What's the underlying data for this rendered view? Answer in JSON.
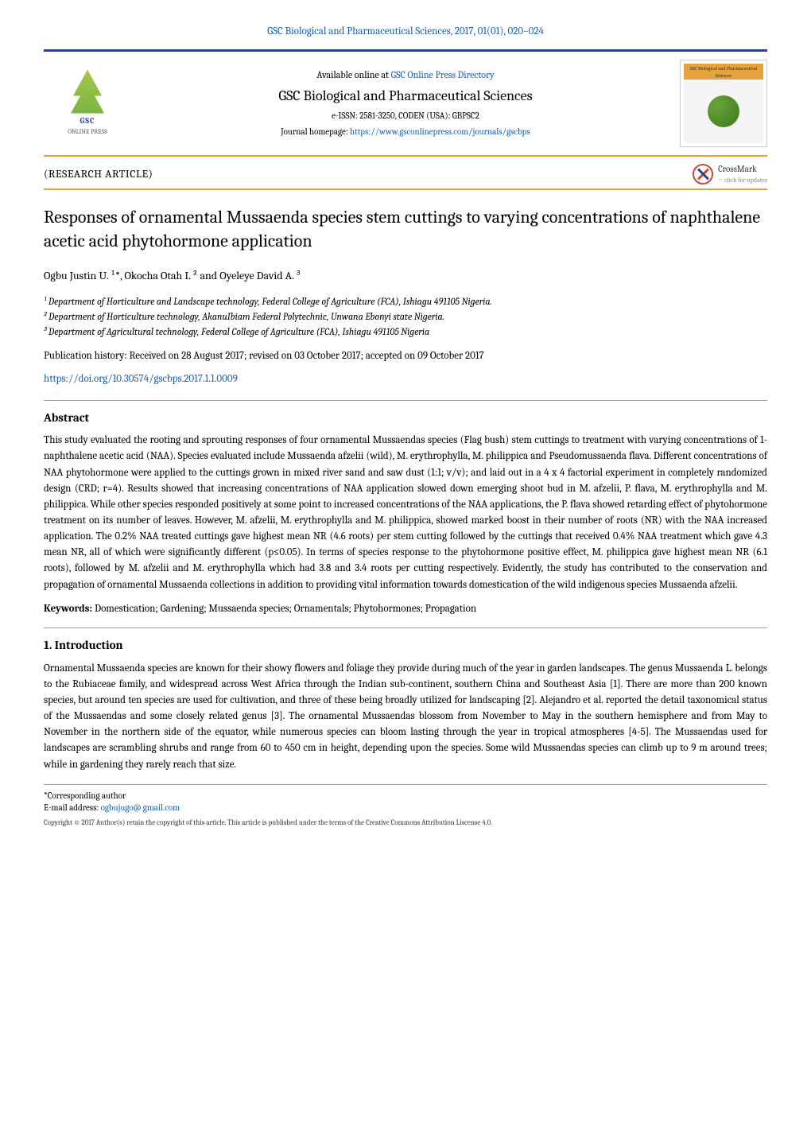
{
  "topLink": "GSC Biological and Pharmaceutical Sciences, 2017, 01(01), 020–024",
  "header": {
    "availablePrefix": "Available online at ",
    "availableLink": "GSC Online Press Directory",
    "journalName": "GSC Biological and Pharmaceutical Sciences",
    "eissn": "e-ISSN: 2581-3250, CODEN (USA): GBPSC2",
    "homepagePrefix": "Journal homepage: ",
    "homepageLink": "https://www.gsconlinepress.com/journals/gscbps",
    "leftLogoText": "GSC",
    "leftLogoSub": "ONLINE PRESS"
  },
  "articleType": "(RESEARCH ARTICLE)",
  "crossmark": {
    "label": "CrossMark",
    "sub": "← click for updates"
  },
  "title": "Responses of ornamental Mussaenda species stem cuttings to varying concentrations of naphthalene acetic acid phytohormone application",
  "authors": "Ogbu Justin U. ¹*, Okocha Otah I. ² and Oyeleye David A. ³",
  "affiliations": [
    "¹ Department of Horticulture and Landscape technology, Federal College of Agriculture (FCA), Ishiagu 491105 Nigeria.",
    "² Department of Horticulture technology, AkanuIbiam Federal Polytechnic, Unwana Ebonyi state Nigeria.",
    "³ Department of Agricultural technology, Federal College of Agriculture (FCA), Ishiagu 491105 Nigeria"
  ],
  "pubHistory": "Publication history: Received on 28 August 2017; revised on 03 October 2017; accepted on 09 October 2017",
  "doi": "https://doi.org/10.30574/gscbps.2017.1.1.0009",
  "abstractHeading": "Abstract",
  "abstractText": "This study evaluated the rooting and sprouting responses of four ornamental Mussaendas species (Flag bush) stem cuttings to treatment with varying concentrations of 1-naphthalene acetic acid (NAA). Species evaluated include Mussaenda afzelii (wild), M. erythrophylla, M. philippica and Pseudomussaenda flava.  Different concentrations of NAA phytohormone were applied to the cuttings grown in mixed river sand and saw dust (1:1; v/v); and laid out in a 4 x 4 factorial experiment in completely randomized design (CRD; r=4). Results showed that increasing concentrations of NAA application slowed down emerging shoot bud in M. afzelii, P. flava, M. erythrophylla and M. philippica. While other species responded positively at some point to increased concentrations of the NAA applications, the P. flava showed retarding effect of phytohormone treatment on its number of leaves. However, M. afzelii, M. erythrophylla and M. philippica, showed marked boost in their number of roots (NR) with the NAA increased application. The 0.2% NAA treated cuttings gave highest mean NR (4.6 roots) per stem cutting followed by the cuttings that received 0.4% NAA treatment which gave 4.3 mean NR, all of which were significantly different (p≤0.05). In terms of species response to the phytohormone positive effect, M. philippica gave highest mean NR (6.1 roots), followed by M. afzelii and M. erythrophylla which had 3.8 and 3.4 roots per cutting respectively. Evidently, the study has contributed to the conservation and propagation of ornamental Mussaenda collections in addition to providing vital information towards domestication of the wild indigenous species Mussaenda afzelii.",
  "keywordsLabel": "Keywords:",
  "keywordsText": " Domestication; Gardening; Mussaenda species; Ornamentals; Phytohormones; Propagation",
  "introHeading": "1.   Introduction",
  "introText": "Ornamental Mussaenda species are known for their showy flowers and foliage they provide during much of the year in garden landscapes. The genus Mussaenda L. belongs to the Rubiaceae family, and widespread across West Africa through the Indian sub-continent, southern China and Southeast Asia [1]. There are more than 200 known species, but around ten species are used for cultivation, and three of these being broadly utilized for landscaping [2]. Alejandro et al. reported the detail taxonomical status of the Mussaendas and some closely related genus [3]. The ornamental Mussaendas blossom from November to May in the southern hemisphere and from May to November in the northern side of the equator, while numerous species can bloom lasting through the year in tropical atmospheres [4-5]. The Mussaendas used for landscapes are scrambling shrubs and range from 60 to 450 cm in height, depending upon the species. Some wild Mussaendas species can climb up to 9 m around trees; while in gardening they rarely reach that size.",
  "footer": {
    "corrLabel": "*Corresponding author",
    "emailLabel": "E-mail address: ",
    "email": "ogbujugo@ gmail.com",
    "copyright": "Copyright © 2017 Author(s) retain the copyright of this article. This article is published under the terms of the Creative Commons Attribution Liscense 4.0."
  },
  "colors": {
    "linkBlue": "#1a5fb4",
    "borderNavy": "#2c3f8f",
    "borderOrange": "#e6a23c"
  }
}
